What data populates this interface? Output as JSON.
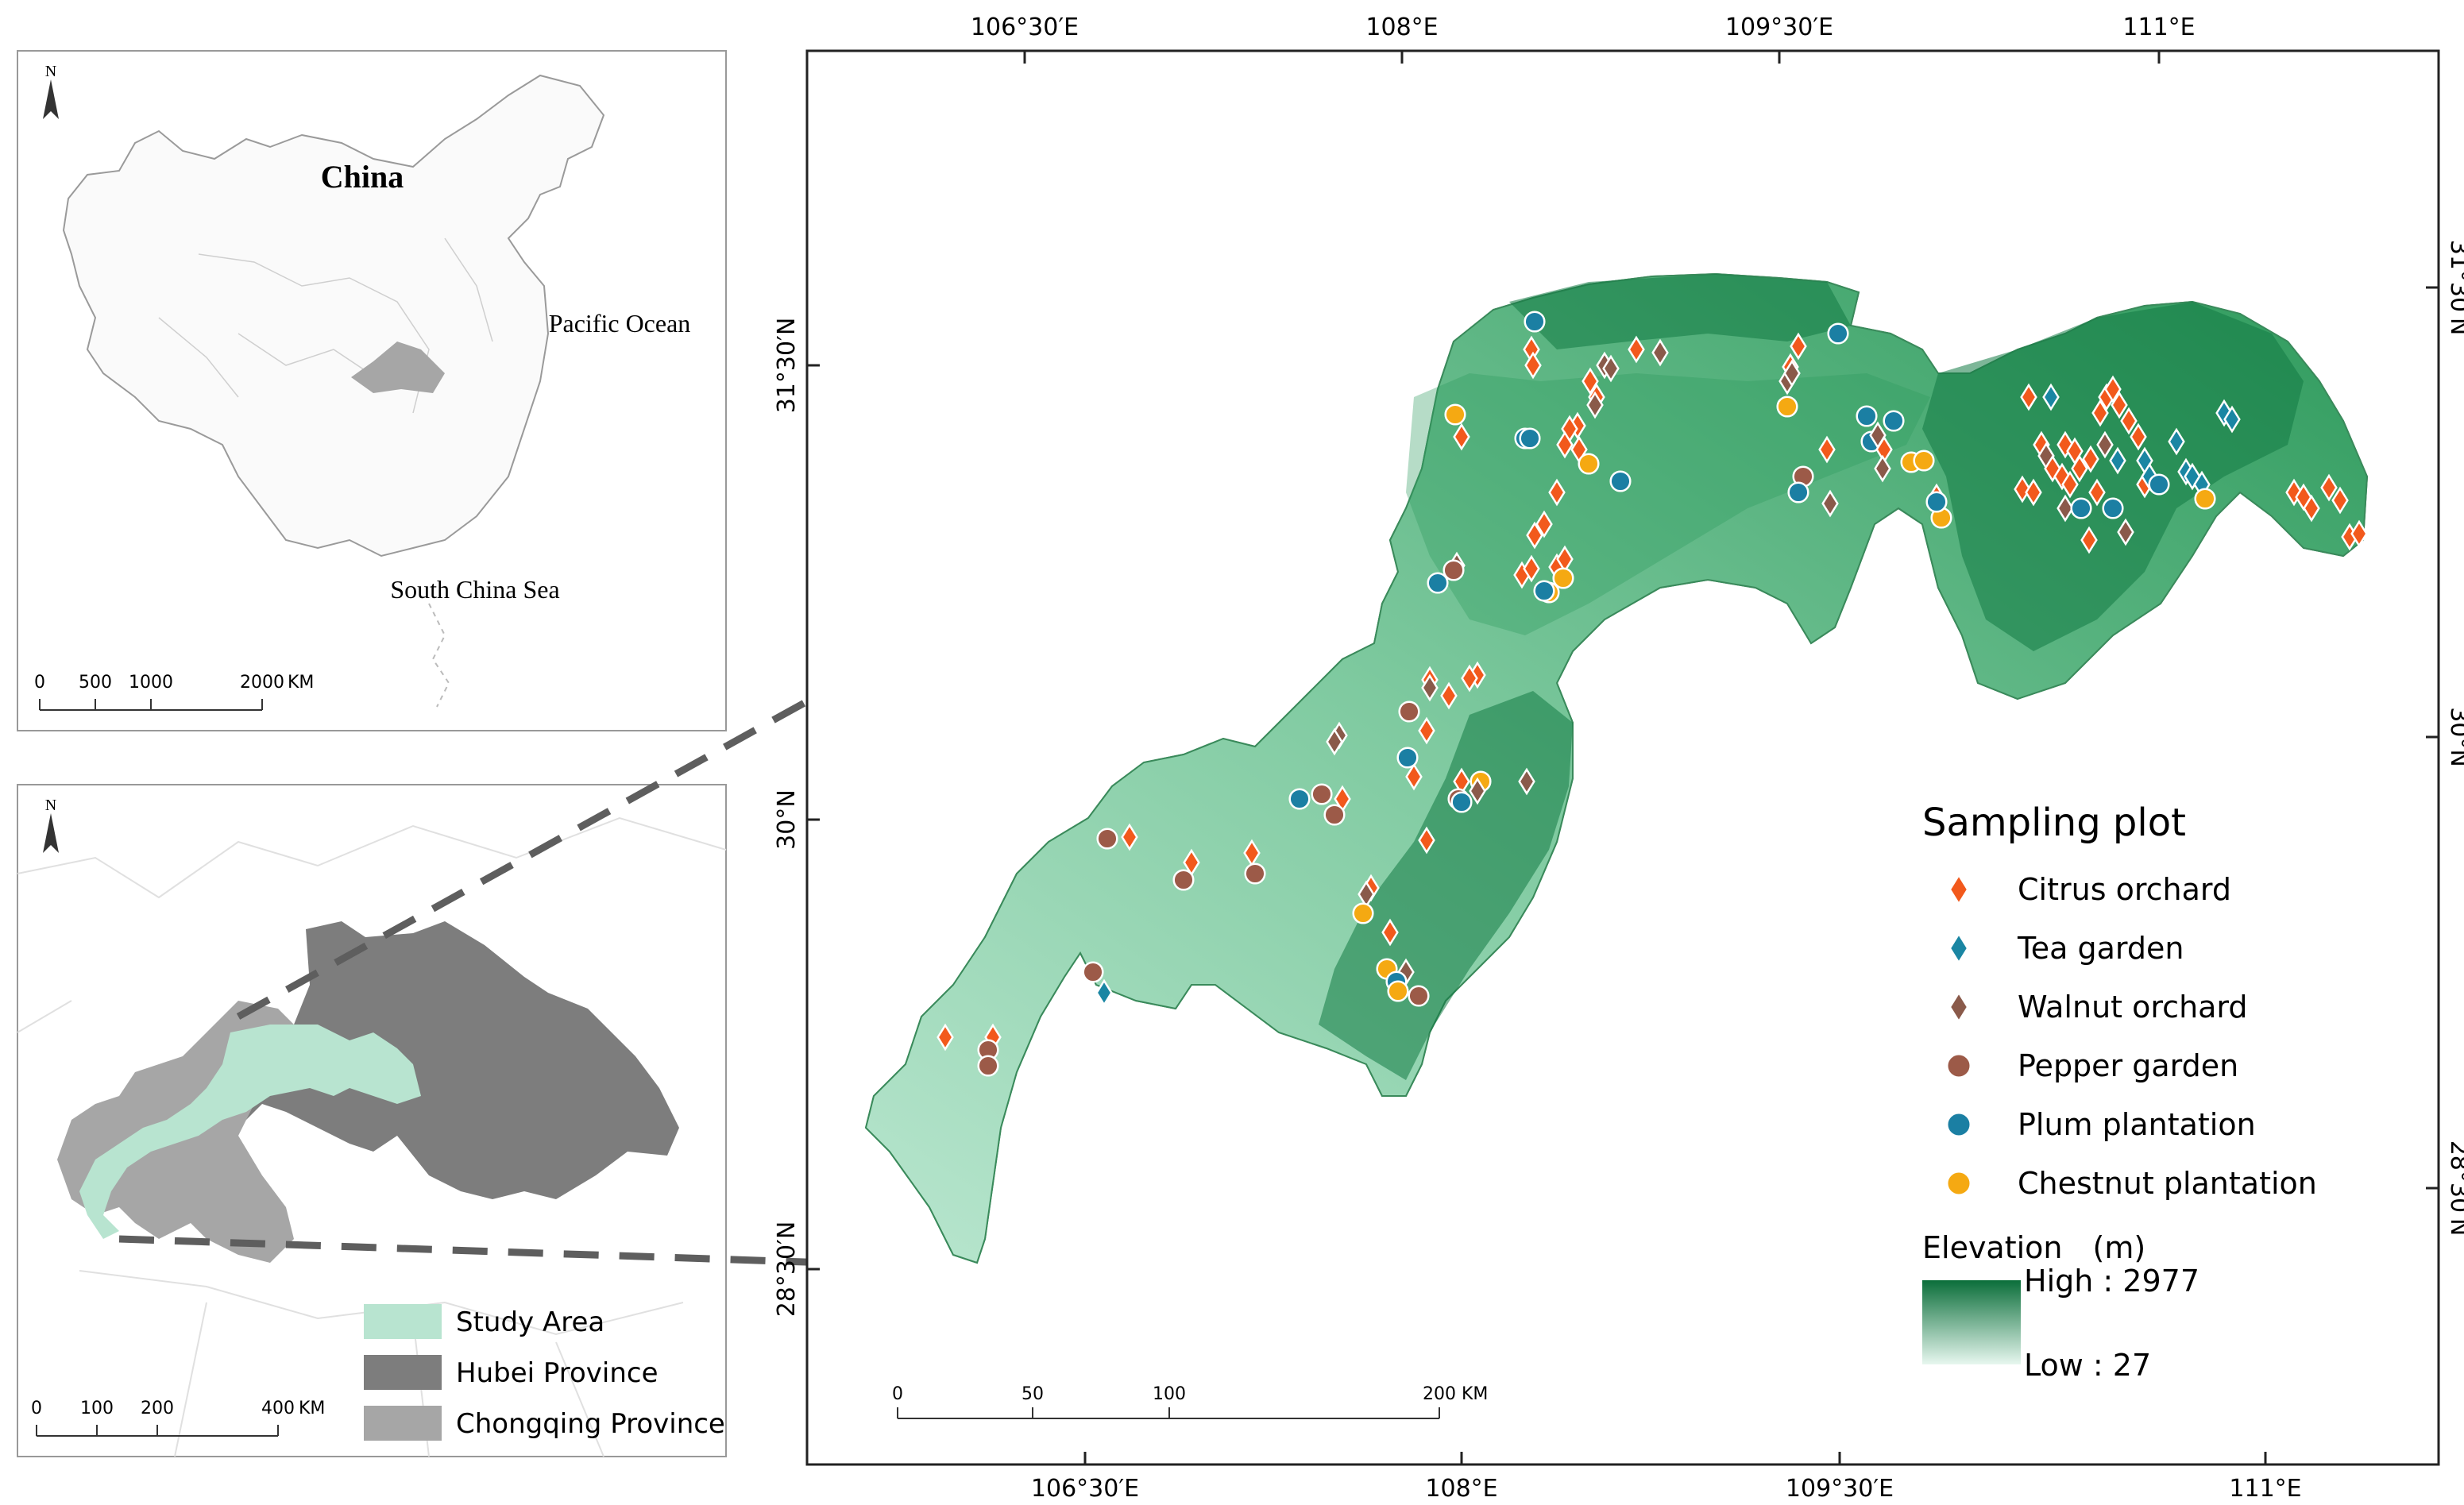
{
  "china_inset": {
    "north": "N",
    "china_label": "China",
    "pacific_label": "Pacific Ocean",
    "scs_label": "South China Sea",
    "scale_ticks": [
      "0",
      "500",
      "1000",
      "2000"
    ],
    "scale_unit": "KM"
  },
  "region_inset": {
    "north": "N",
    "legend": [
      {
        "label": "Study Area",
        "color": "#b8e4d0"
      },
      {
        "label": "Hubei Province",
        "color": "#7d7d7d"
      },
      {
        "label": "Chongqing Province",
        "color": "#a6a6a6"
      }
    ],
    "scale_ticks": [
      "0",
      "100",
      "200",
      "400"
    ],
    "scale_unit": "KM"
  },
  "main_map": {
    "top_ticks": [
      "106°30′E",
      "108°E",
      "109°30′E",
      "111°E"
    ],
    "bottom_ticks": [
      "106°30′E",
      "108°E",
      "109°30′E",
      "111°E"
    ],
    "left_ticks": [
      "31°30′N",
      "30°N",
      "28°30′N"
    ],
    "right_ticks": [
      "31°30′N",
      "30°N",
      "28°30′N"
    ],
    "scale_ticks": [
      "0",
      "50",
      "100",
      "200"
    ],
    "scale_unit": "KM",
    "legend_title": "Sampling plot",
    "legend_items": [
      {
        "label": "Citrus orchard",
        "shape": "diamond",
        "color": "#f2591c"
      },
      {
        "label": "Tea garden",
        "shape": "diamond",
        "color": "#1a86a3"
      },
      {
        "label": "Walnut orchard",
        "shape": "diamond",
        "color": "#8a5a4a"
      },
      {
        "label": "Pepper garden",
        "shape": "circle",
        "color": "#9c5a48"
      },
      {
        "label": "Plum plantation",
        "shape": "circle",
        "color": "#1b7fa3"
      },
      {
        "label": "Chestnut plantation",
        "shape": "circle",
        "color": "#f5a912"
      }
    ],
    "elevation_title": "Elevation　(m)",
    "elevation_high": "High : 2977",
    "elevation_low": "Low : 27",
    "elevation_colors": [
      "#0b6e3a",
      "#e7f7ef"
    ]
  }
}
